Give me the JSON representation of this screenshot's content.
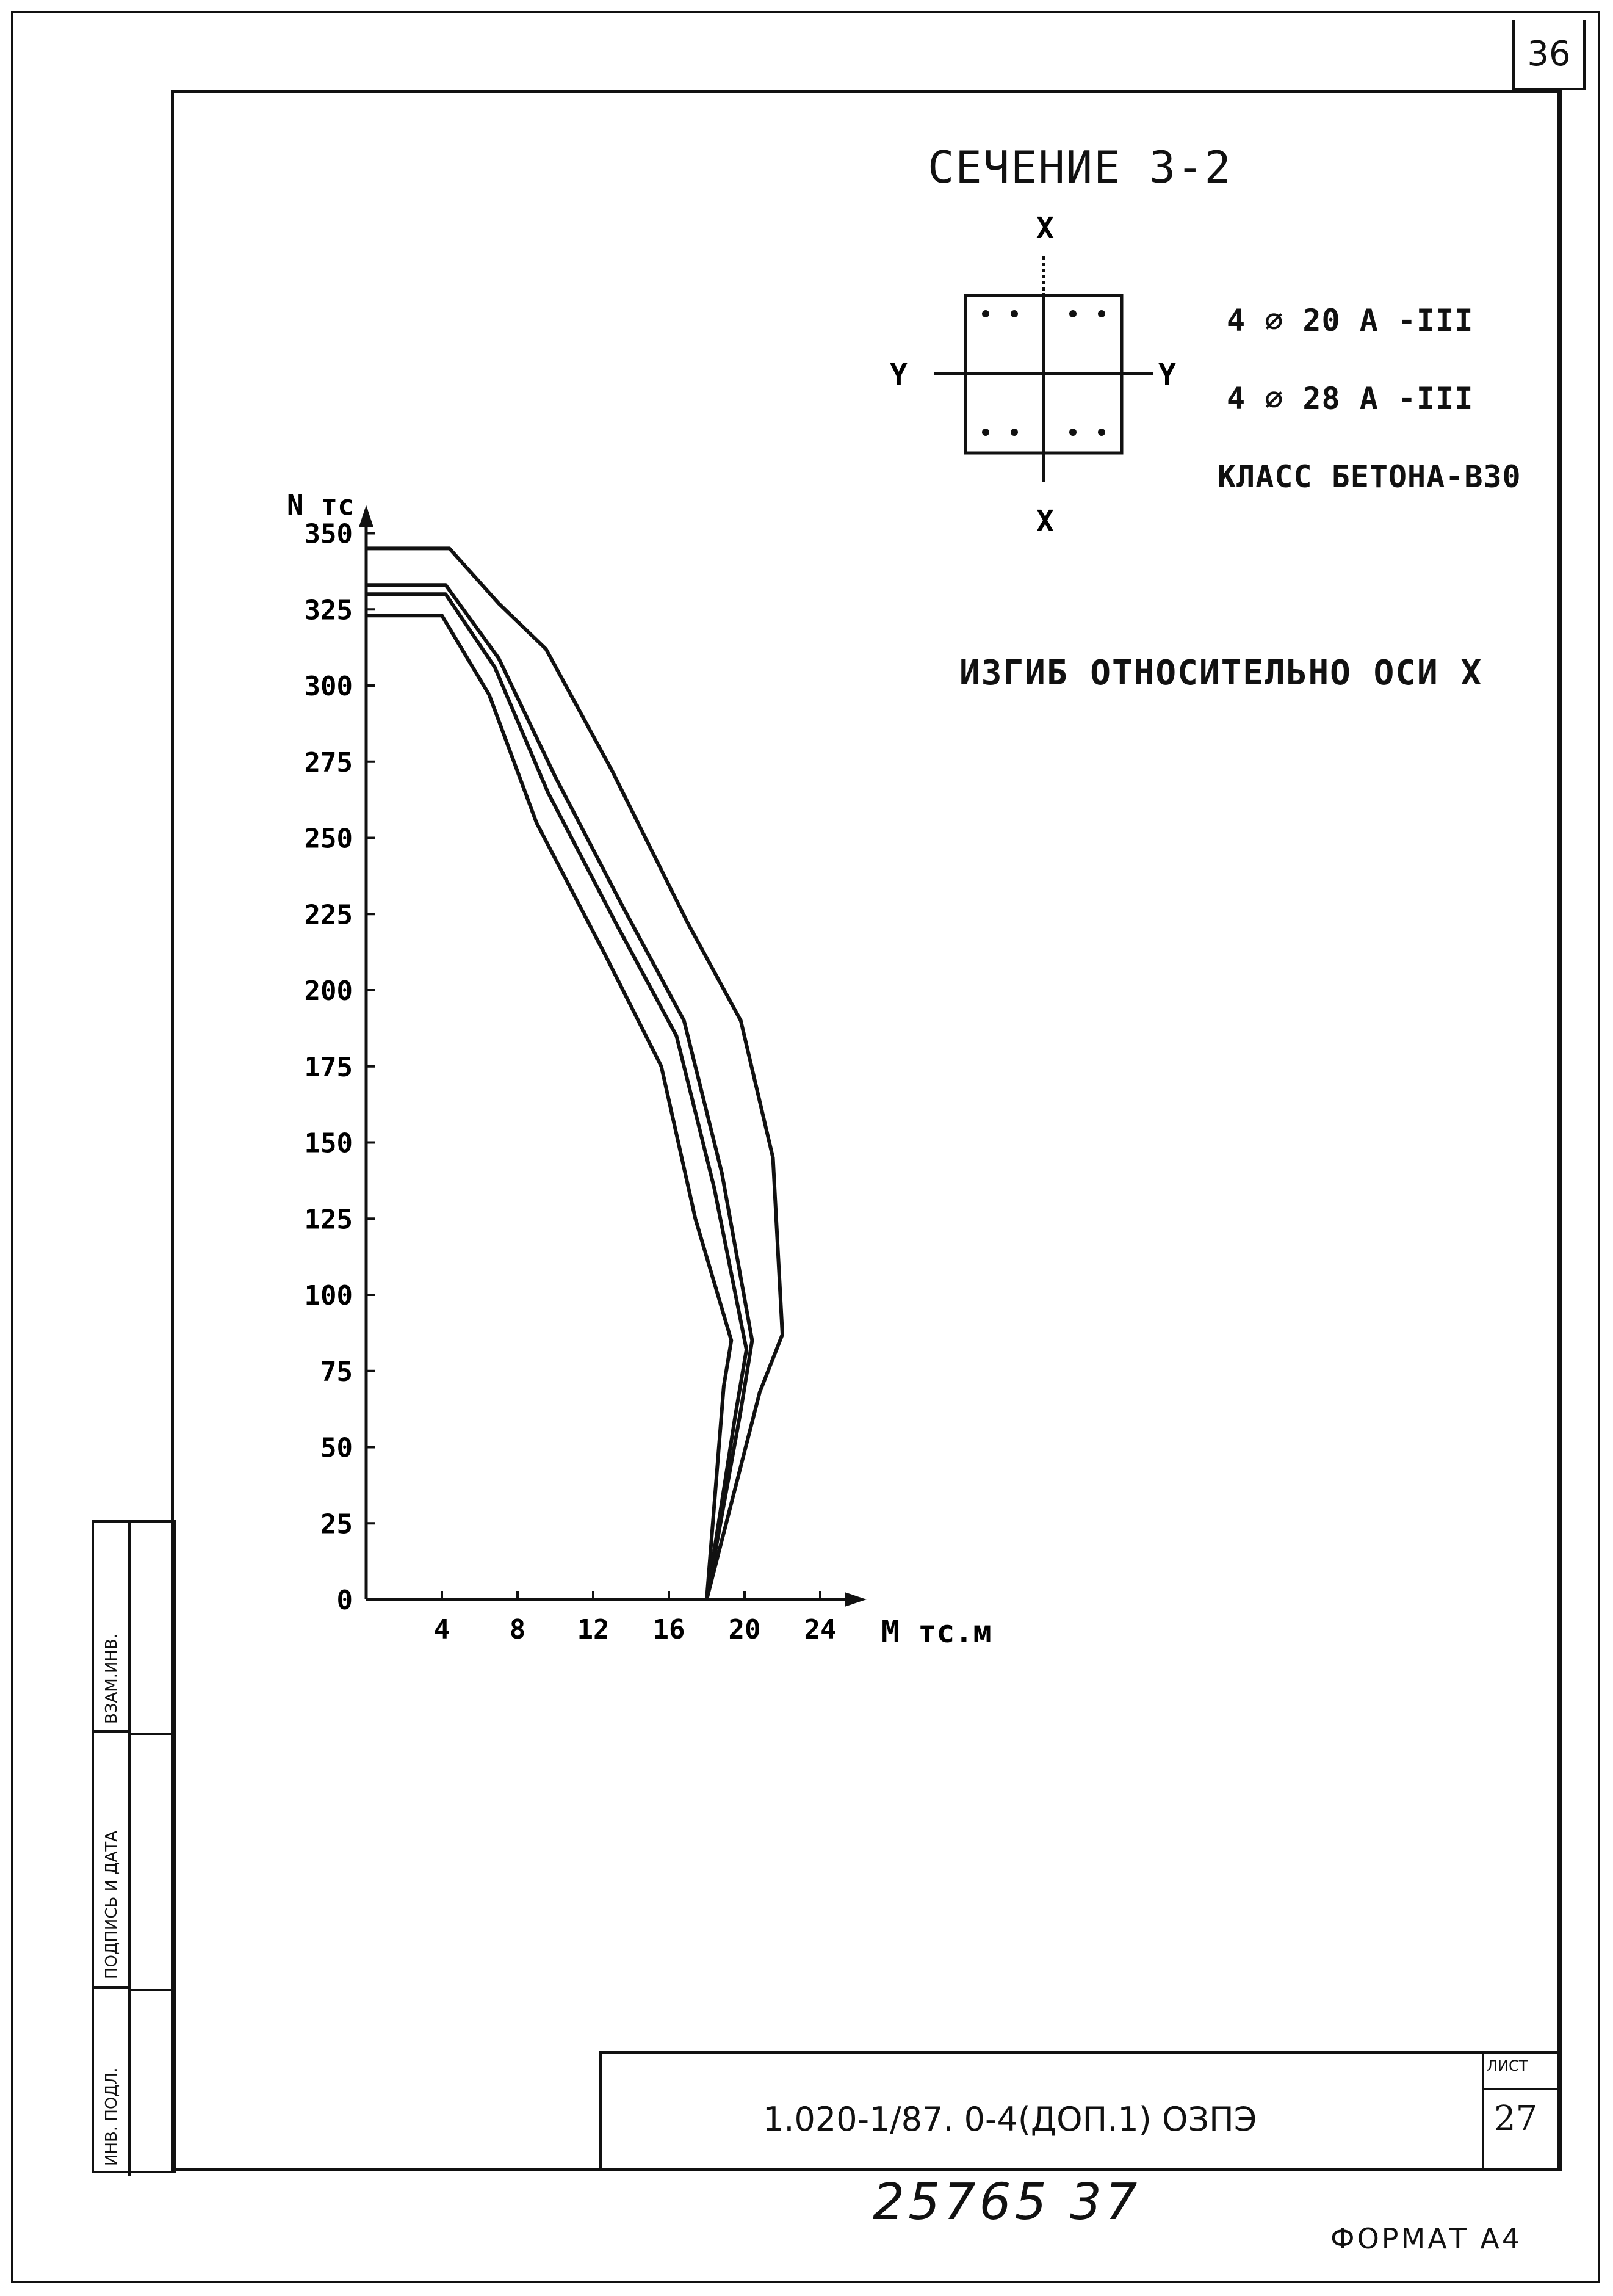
{
  "page_number": "36",
  "section": {
    "title": "СЕЧЕНИЕ 3-2",
    "axis_x": "X",
    "axis_y": "Y",
    "rebar_1": "4 ⌀ 20 А -III",
    "rebar_2": "4 ⌀ 28 А -III",
    "concrete_class": "КЛАСС БЕТОНА-В30"
  },
  "bending_note": "ИЗГИБ ОТНОСИТЕЛЬНО ОСИ X",
  "chart_data": {
    "type": "line",
    "xlabel": "М тс.м",
    "ylabel": "N тс",
    "xlim": [
      0,
      24
    ],
    "ylim": [
      0,
      350
    ],
    "x_ticks": [
      "4",
      "8",
      "12",
      "16",
      "20",
      "24"
    ],
    "y_ticks": [
      "0",
      "25",
      "50",
      "75",
      "100",
      "125",
      "150",
      "175",
      "200",
      "225",
      "250",
      "275",
      "300",
      "325",
      "350"
    ],
    "grid": false,
    "series": [
      {
        "points": [
          [
            0,
            345
          ],
          [
            4.4,
            345
          ],
          [
            7,
            327
          ],
          [
            9.5,
            312
          ],
          [
            13,
            272
          ],
          [
            17,
            222
          ],
          [
            19.8,
            190
          ],
          [
            21.5,
            145
          ],
          [
            22,
            87
          ],
          [
            20.8,
            68
          ],
          [
            18,
            0
          ]
        ]
      },
      {
        "points": [
          [
            0,
            333
          ],
          [
            4.2,
            333
          ],
          [
            7,
            309
          ],
          [
            10,
            270
          ],
          [
            13.6,
            227
          ],
          [
            16.8,
            190
          ],
          [
            18.8,
            140
          ],
          [
            20.4,
            85
          ],
          [
            19.8,
            62
          ],
          [
            18,
            0
          ]
        ]
      },
      {
        "points": [
          [
            0,
            330
          ],
          [
            4.2,
            330
          ],
          [
            6.8,
            306
          ],
          [
            9.6,
            265
          ],
          [
            13.2,
            222
          ],
          [
            16.4,
            185
          ],
          [
            18.4,
            135
          ],
          [
            20.1,
            82
          ],
          [
            19.5,
            60
          ],
          [
            18,
            0
          ]
        ]
      },
      {
        "points": [
          [
            0,
            323
          ],
          [
            4,
            323
          ],
          [
            6.5,
            297
          ],
          [
            9,
            255
          ],
          [
            12.6,
            212
          ],
          [
            15.6,
            175
          ],
          [
            17.4,
            125
          ],
          [
            19.3,
            85
          ],
          [
            18.9,
            70
          ],
          [
            18,
            0
          ]
        ]
      }
    ]
  },
  "side_block": {
    "label_top": "ВЗАМ.ИНВ.",
    "label_mid": "ПОДПИСЬ И ДАТА",
    "label_bot": "ИНВ. ПОДЛ."
  },
  "stamp": {
    "code": "1.020-1/87. 0-4(ДОП.1)  ОЗПЭ",
    "sheet_label": "ЛИСТ",
    "sheet_number": "27"
  },
  "handwritten": "25765  37",
  "format_label": "ФОРМАТ А4"
}
